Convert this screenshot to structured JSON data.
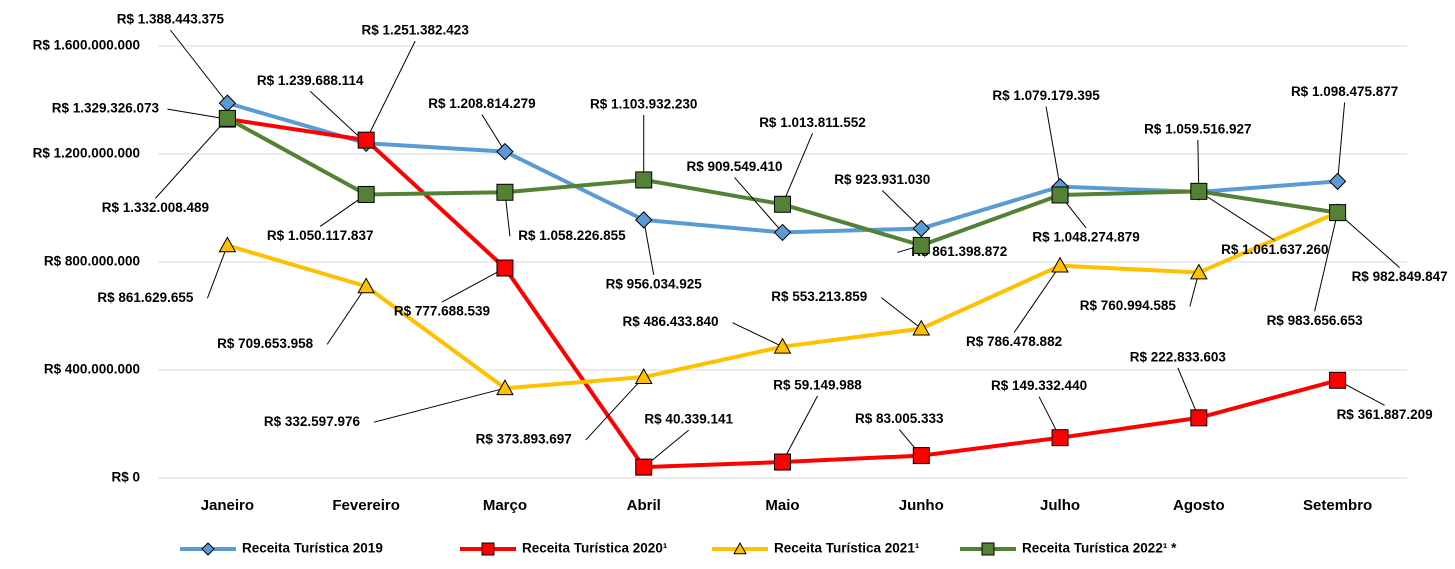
{
  "chart_data": {
    "type": "line",
    "categories": [
      "Janeiro",
      "Fevereiro",
      "Março",
      "Abril",
      "Maio",
      "Junho",
      "Julho",
      "Agosto",
      "Setembro"
    ],
    "ylim": [
      0,
      1600000000
    ],
    "yticks": [
      {
        "value": 0,
        "label": "R$ 0"
      },
      {
        "value": 400000000,
        "label": "R$ 400.000.000"
      },
      {
        "value": 800000000,
        "label": "R$ 800.000.000"
      },
      {
        "value": 1200000000,
        "label": "R$ 1.200.000.000"
      },
      {
        "value": 1600000000,
        "label": "R$ 1.600.000.000"
      }
    ],
    "grid": true,
    "legend": "bottom",
    "series": [
      {
        "name": "Receita Turística 2019",
        "color": "#5b9bd5",
        "marker": "diamond",
        "values": [
          1388443375,
          1239688114,
          1208814279,
          956034925,
          909549410,
          923931030,
          1079179395,
          1059516927,
          1098475877
        ],
        "value_labels": [
          "R$ 1.388.443.375",
          "R$ 1.239.688.114",
          "R$ 1.208.814.279",
          "R$ 956.034.925",
          "R$ 909.549.410",
          "R$ 923.931.030",
          "R$ 1.079.179.395",
          "R$ 1.059.516.927",
          "R$ 1.098.475.877"
        ]
      },
      {
        "name": "Receita Turística 2020¹",
        "color": "#ff0000",
        "marker": "square",
        "values": [
          1329326073,
          1251382423,
          777688539,
          40339141,
          59149988,
          83005333,
          149332440,
          222833603,
          361887209
        ],
        "value_labels": [
          "R$ 1.329.326.073",
          "R$ 1.251.382.423",
          "R$ 777.688.539",
          "R$ 40.339.141",
          "R$ 59.149.988",
          "R$ 83.005.333",
          "R$ 149.332.440",
          "R$ 222.833.603",
          "R$ 361.887.209"
        ]
      },
      {
        "name": "Receita Turística 2021¹",
        "color": "#ffc000",
        "marker": "triangle",
        "values": [
          861629655,
          709653958,
          332597976,
          373893697,
          486433840,
          553213859,
          786478882,
          760994585,
          983656653
        ],
        "value_labels": [
          "R$ 861.629.655",
          "R$ 709.653.958",
          "R$ 332.597.976",
          "R$ 373.893.697",
          "R$ 486.433.840",
          "R$ 553.213.859",
          "R$ 786.478.882",
          "R$ 760.994.585",
          "R$ 983.656.653"
        ]
      },
      {
        "name": "Receita Turística 2022¹ *",
        "color": "#548235",
        "marker": "square",
        "values": [
          1332008489,
          1050117837,
          1058226855,
          1103932230,
          1013811552,
          861398872,
          1048274879,
          1061637260,
          982849847
        ],
        "value_labels": [
          "R$ 1.332.008.489",
          "R$ 1.050.117.837",
          "R$ 1.058.226.855",
          "R$ 1.103.932.230",
          "R$ 1.013.811.552",
          "R$ 861.398.872",
          "R$ 1.048.274.879",
          "R$ 1.061.637.260",
          "R$ 982.849.847"
        ]
      }
    ]
  }
}
